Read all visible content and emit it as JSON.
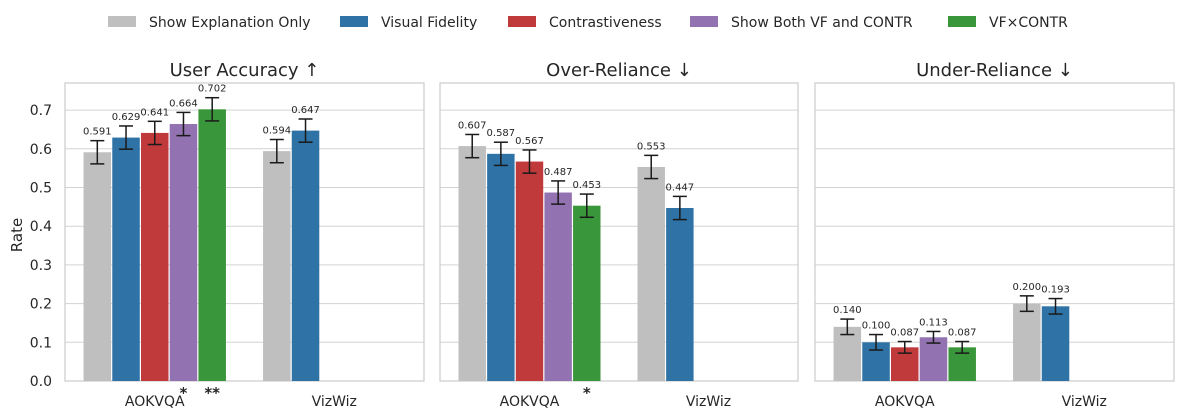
{
  "legend": {
    "entries": [
      {
        "label": "Show Explanation Only",
        "color": "#bfbfbf"
      },
      {
        "label": "Visual Fidelity",
        "color": "#2e72a6"
      },
      {
        "label": "Contrastiveness",
        "color": "#c0393b"
      },
      {
        "label": "Show Both VF and CONTR",
        "color": "#9272b0"
      },
      {
        "label": "VF×CONTR",
        "color": "#3a963a"
      }
    ]
  },
  "shared_ylabel": "Rate",
  "chart_data": [
    {
      "type": "bar",
      "title": "User Accuracy ↑",
      "ylabel": "Rate",
      "ylim": [
        0,
        0.77
      ],
      "yticks": [
        "0.0",
        "0.1",
        "0.2",
        "0.3",
        "0.4",
        "0.5",
        "0.6",
        "0.7"
      ],
      "grid": true,
      "categories": [
        "AOKVQA",
        "VizWiz"
      ],
      "series": [
        {
          "name": "Show Explanation Only",
          "values": [
            0.591,
            0.594
          ],
          "labels": [
            "0.591",
            "0.594"
          ],
          "err": [
            0.03,
            0.03
          ]
        },
        {
          "name": "Visual Fidelity",
          "values": [
            0.629,
            0.647
          ],
          "labels": [
            "0.629",
            "0.647"
          ],
          "err": [
            0.03,
            0.03
          ]
        },
        {
          "name": "Contrastiveness",
          "values": [
            0.641,
            null
          ],
          "labels": [
            "0.641",
            ""
          ],
          "err": [
            0.03,
            null
          ]
        },
        {
          "name": "Show Both VF and CONTR",
          "values": [
            0.664,
            null
          ],
          "labels": [
            "0.664",
            ""
          ],
          "err": [
            0.03,
            null
          ]
        },
        {
          "name": "VF×CONTR",
          "values": [
            0.702,
            null
          ],
          "labels": [
            "0.702",
            ""
          ],
          "err": [
            0.03,
            null
          ]
        }
      ],
      "annotations": [
        {
          "category": 0,
          "series": 3,
          "text": "*"
        },
        {
          "category": 0,
          "series": 4,
          "text": "**"
        }
      ]
    },
    {
      "type": "bar",
      "title": "Over-Reliance ↓",
      "ylim": [
        0,
        0.77
      ],
      "grid": true,
      "categories": [
        "AOKVQA",
        "VizWiz"
      ],
      "series": [
        {
          "name": "Show Explanation Only",
          "values": [
            0.607,
            0.553
          ],
          "labels": [
            "0.607",
            "0.553"
          ],
          "err": [
            0.03,
            0.03
          ]
        },
        {
          "name": "Visual Fidelity",
          "values": [
            0.587,
            0.447
          ],
          "labels": [
            "0.587",
            "0.447"
          ],
          "err": [
            0.03,
            0.03
          ]
        },
        {
          "name": "Contrastiveness",
          "values": [
            0.567,
            null
          ],
          "labels": [
            "0.567",
            ""
          ],
          "err": [
            0.03,
            null
          ]
        },
        {
          "name": "Show Both VF and CONTR",
          "values": [
            0.487,
            null
          ],
          "labels": [
            "0.487",
            ""
          ],
          "err": [
            0.03,
            null
          ]
        },
        {
          "name": "VF×CONTR",
          "values": [
            0.453,
            null
          ],
          "labels": [
            "0.453",
            ""
          ],
          "err": [
            0.03,
            null
          ]
        }
      ],
      "annotations": [
        {
          "category": 0,
          "series": 4,
          "text": "*"
        }
      ]
    },
    {
      "type": "bar",
      "title": "Under-Reliance ↓",
      "ylim": [
        0,
        0.77
      ],
      "grid": true,
      "categories": [
        "AOKVQA",
        "VizWiz"
      ],
      "series": [
        {
          "name": "Show Explanation Only",
          "values": [
            0.14,
            0.2
          ],
          "labels": [
            "0.140",
            "0.200"
          ],
          "err": [
            0.02,
            0.02
          ]
        },
        {
          "name": "Visual Fidelity",
          "values": [
            0.1,
            0.193
          ],
          "labels": [
            "0.100",
            "0.193"
          ],
          "err": [
            0.02,
            0.02
          ]
        },
        {
          "name": "Contrastiveness",
          "values": [
            0.087,
            null
          ],
          "labels": [
            "0.087",
            ""
          ],
          "err": [
            0.015,
            null
          ]
        },
        {
          "name": "Show Both VF and CONTR",
          "values": [
            0.113,
            null
          ],
          "labels": [
            "0.113",
            ""
          ],
          "err": [
            0.015,
            null
          ]
        },
        {
          "name": "VF×CONTR",
          "values": [
            0.087,
            null
          ],
          "labels": [
            "0.087",
            ""
          ],
          "err": [
            0.015,
            null
          ]
        }
      ],
      "annotations": []
    }
  ]
}
